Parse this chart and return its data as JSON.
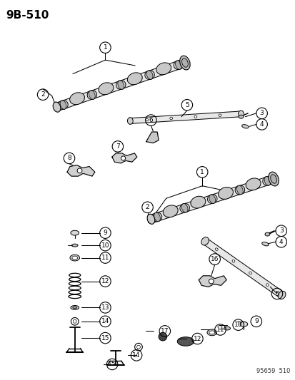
{
  "title": "9B-510",
  "footer": "95659  510",
  "bg_color": "#ffffff",
  "fg_color": "#000000",
  "fig_width": 4.14,
  "fig_height": 5.33,
  "dpi": 100
}
